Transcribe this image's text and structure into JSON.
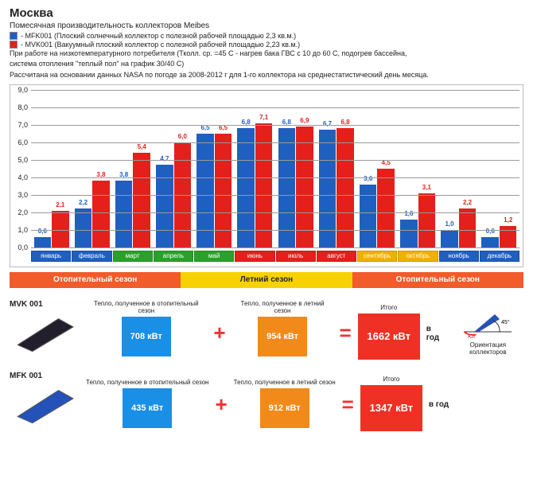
{
  "header": {
    "title": "Москва",
    "subtitle": "Помесячная производительность коллекторов Meibes",
    "legend": [
      {
        "color": "#1f5fbf",
        "text": "- MFK001 (Плоский солнечный коллектор с полезной рабочей площадью 2,3 кв.м.)"
      },
      {
        "color": "#e3201c",
        "text": "- MVK001 (Вакуумный плоский коллектор с полезной рабочей площадью 2,23 кв.м.)"
      }
    ],
    "note1": "При работе на низкотемпературного потребителя (Тколл. ср. =45 С - нагрев бака ГВС с 10 до 60 С, подогрев бассейна,",
    "note2": "система отопления \"теплый пол\" на график 30/40 С)",
    "note3": "Рассчитана на основании данных NASA по погоде за 2008-2012 г для 1-го коллектора на среднестатистический день месяца."
  },
  "chart": {
    "type": "bar",
    "ylim": [
      0,
      9
    ],
    "ytick_step": 1,
    "y_labels": [
      "0,0",
      "1,0",
      "2,0",
      "3,0",
      "4,0",
      "5,0",
      "6,0",
      "7,0",
      "8,0",
      "9,0"
    ],
    "grid_color": "#9a9a9a",
    "series_colors": {
      "mfk": "#1f5fbf",
      "mvk": "#e3201c"
    },
    "label_colors": {
      "mfk": "#1f5fbf",
      "mvk": "#e3201c"
    },
    "categories": [
      {
        "name": "январь",
        "color": "#1f5fbf",
        "mfk": 0.6,
        "mvk": 2.1,
        "lmfk": "0,6",
        "lmvk": "2,1"
      },
      {
        "name": "февраль",
        "color": "#1f5fbf",
        "mfk": 2.2,
        "mvk": 3.8,
        "lmfk": "2,2",
        "lmvk": "3,8"
      },
      {
        "name": "март",
        "color": "#2aa12a",
        "mfk": 3.8,
        "mvk": 5.4,
        "lmfk": "3,8",
        "lmvk": "5,4"
      },
      {
        "name": "апрель",
        "color": "#2aa12a",
        "mfk": 4.7,
        "mvk": 6.0,
        "lmfk": "4,7",
        "lmvk": "6,0"
      },
      {
        "name": "май",
        "color": "#2aa12a",
        "mfk": 6.5,
        "mvk": 6.5,
        "lmfk": "6,5",
        "lmvk": "6,5"
      },
      {
        "name": "июнь",
        "color": "#e3201c",
        "mfk": 6.8,
        "mvk": 7.1,
        "lmfk": "6,8",
        "lmvk": "7,1"
      },
      {
        "name": "июль",
        "color": "#e3201c",
        "mfk": 6.8,
        "mvk": 6.9,
        "lmfk": "6,8",
        "lmvk": "6,9"
      },
      {
        "name": "август",
        "color": "#e3201c",
        "mfk": 6.7,
        "mvk": 6.8,
        "lmfk": "6,7",
        "lmvk": "6,8"
      },
      {
        "name": "сентябрь",
        "color": "#f0b000",
        "mfk": 3.6,
        "mvk": 4.5,
        "lmfk": "3,6",
        "lmvk": "4,5"
      },
      {
        "name": "октябрь",
        "color": "#f0b000",
        "mfk": 1.6,
        "mvk": 3.1,
        "lmfk": "1,6",
        "lmvk": "3,1"
      },
      {
        "name": "ноябрь",
        "color": "#1f5fbf",
        "mfk": 1.0,
        "mvk": 2.2,
        "lmfk": "1,0",
        "lmvk": "2,2"
      },
      {
        "name": "декабрь",
        "color": "#1f5fbf",
        "mfk": 0.6,
        "mvk": 1.2,
        "lmfk": "0,6",
        "lmvk": "1,2"
      }
    ],
    "label_fontsize": 8
  },
  "seasons": [
    {
      "label": "Отопительный сезон",
      "color": "#f25b2a",
      "flex": 4
    },
    {
      "label": "Летний сезон",
      "color": "#f7d200",
      "flex": 4,
      "text_color": "#222"
    },
    {
      "label": "Отопительный сезон",
      "color": "#f25b2a",
      "flex": 4
    }
  ],
  "calc": {
    "caption_heat": "Тепло, полученное в отопительный сезон",
    "caption_summer": "Тепло, полученное в летний сезон",
    "totals_label": "Итого",
    "per_year": "в год",
    "rows": [
      {
        "model": "MVK 001",
        "panel_fill": "#221e2c",
        "heat": {
          "value": "708 кВт",
          "color": "#1a8fe6"
        },
        "summer": {
          "value": "954 кВт",
          "color": "#f28a1a"
        },
        "total": {
          "value": "1662 кВт",
          "color": "#ee3124"
        }
      },
      {
        "model": "MFK 001",
        "panel_fill": "#2552b8",
        "heat": {
          "value": "435 кВт",
          "color": "#1a8fe6"
        },
        "summer": {
          "value": "912 кВт",
          "color": "#f28a1a"
        },
        "total": {
          "value": "1347 кВт",
          "color": "#ee3124"
        }
      }
    ],
    "orientation": {
      "label": "Ориентация коллекторов",
      "angle": "45°",
      "direction": "ЮГ",
      "panel_color": "#2552b8",
      "arrow_color": "#e3201c"
    }
  }
}
